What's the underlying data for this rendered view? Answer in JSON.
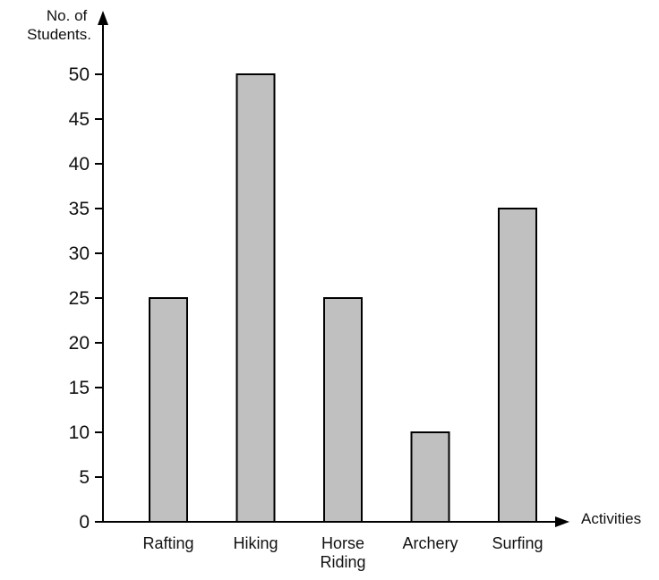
{
  "chart_data": {
    "type": "bar",
    "title": "",
    "ylabel_lines": [
      "No. of",
      "Students."
    ],
    "xlabel": "Activities",
    "categories": [
      [
        "Rafting"
      ],
      [
        "Hiking"
      ],
      [
        "Horse",
        "Riding"
      ],
      [
        "Archery"
      ],
      [
        "Surfing"
      ]
    ],
    "values": [
      25,
      50,
      25,
      10,
      35
    ],
    "ylim": [
      0,
      50
    ],
    "yticks": [
      0,
      5,
      10,
      15,
      20,
      25,
      30,
      35,
      40,
      45,
      50
    ],
    "grid": false,
    "bar_color": "#c0c0c0",
    "bar_edge_color": "#000000",
    "axis_color": "#000000"
  }
}
